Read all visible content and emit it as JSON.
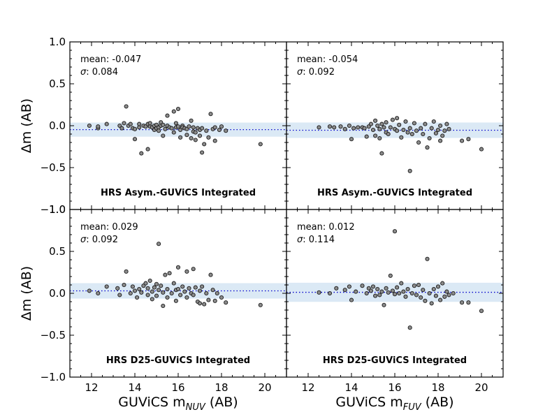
{
  "figure": {
    "ylabel": "Δm (AB)",
    "xlabel_left": {
      "prefix": "GUViCS m",
      "sub": "NUV",
      "suffix": " (AB)"
    },
    "xlabel_right": {
      "prefix": "GUViCS m",
      "sub": "FUV",
      "suffix": " (AB)"
    }
  },
  "colors": {
    "point_fill": "#8c8c8c",
    "point_stroke": "#1a1a1a",
    "band": "#dbe9f5",
    "mean_line": "#0000cc"
  },
  "chart_data": [
    {
      "type": "scatter",
      "panel": "top-left",
      "title": "HRS Asym.-GUViCS Integrated",
      "xlabel": "",
      "ylabel": "Δm (AB)",
      "xlim": [
        11,
        21
      ],
      "ylim": [
        -1.0,
        1.0
      ],
      "xticks": [],
      "yticks": [
        "1.0",
        "0.5",
        "0.0",
        "−0.5",
        "−1.0"
      ],
      "mean_label": "mean: -0.047",
      "mean": -0.047,
      "sigma_label": ": 0.084",
      "sigma": 0.084,
      "points": [
        [
          11.9,
          0.0
        ],
        [
          12.3,
          -0.03
        ],
        [
          12.3,
          -0.01
        ],
        [
          12.7,
          0.02
        ],
        [
          13.3,
          0.0
        ],
        [
          13.4,
          -0.03
        ],
        [
          13.5,
          0.03
        ],
        [
          13.6,
          0.23
        ],
        [
          13.7,
          0.0
        ],
        [
          13.8,
          0.02
        ],
        [
          13.9,
          -0.03
        ],
        [
          14.0,
          -0.04
        ],
        [
          14.0,
          -0.16
        ],
        [
          14.2,
          -0.02
        ],
        [
          14.2,
          0.02
        ],
        [
          14.3,
          -0.33
        ],
        [
          14.4,
          0.0
        ],
        [
          14.5,
          -0.01
        ],
        [
          14.6,
          0.02
        ],
        [
          14.6,
          -0.28
        ],
        [
          14.7,
          -0.01
        ],
        [
          14.7,
          0.03
        ],
        [
          14.8,
          -0.02
        ],
        [
          14.9,
          0.0
        ],
        [
          14.9,
          -0.05
        ],
        [
          15.0,
          0.01
        ],
        [
          15.0,
          -0.03
        ],
        [
          15.1,
          -0.02
        ],
        [
          15.1,
          -0.06
        ],
        [
          15.2,
          0.0
        ],
        [
          15.2,
          0.04
        ],
        [
          15.3,
          -0.12
        ],
        [
          15.3,
          0.01
        ],
        [
          15.4,
          -0.04
        ],
        [
          15.5,
          0.12
        ],
        [
          15.5,
          0.0
        ],
        [
          15.6,
          -0.02
        ],
        [
          15.7,
          -0.03
        ],
        [
          15.8,
          0.17
        ],
        [
          15.8,
          -0.08
        ],
        [
          15.9,
          -0.02
        ],
        [
          15.9,
          0.03
        ],
        [
          16.0,
          -0.01
        ],
        [
          16.0,
          0.2
        ],
        [
          16.1,
          -0.05
        ],
        [
          16.1,
          -0.14
        ],
        [
          16.2,
          0.0
        ],
        [
          16.2,
          -0.02
        ],
        [
          16.3,
          -0.03
        ],
        [
          16.4,
          -0.11
        ],
        [
          16.4,
          -0.04
        ],
        [
          16.5,
          -0.01
        ],
        [
          16.6,
          0.06
        ],
        [
          16.6,
          -0.15
        ],
        [
          16.7,
          -0.07
        ],
        [
          16.7,
          -0.02
        ],
        [
          16.8,
          -0.17
        ],
        [
          16.8,
          -0.08
        ],
        [
          16.9,
          -0.03
        ],
        [
          17.0,
          -0.05
        ],
        [
          17.0,
          -0.12
        ],
        [
          17.1,
          -0.32
        ],
        [
          17.1,
          -0.03
        ],
        [
          17.2,
          -0.22
        ],
        [
          17.3,
          -0.06
        ],
        [
          17.4,
          -0.14
        ],
        [
          17.5,
          0.14
        ],
        [
          17.6,
          -0.04
        ],
        [
          17.7,
          -0.18
        ],
        [
          17.7,
          -0.02
        ],
        [
          17.9,
          -0.05
        ],
        [
          18.0,
          -0.01
        ],
        [
          18.2,
          -0.06
        ],
        [
          19.8,
          -0.22
        ]
      ]
    },
    {
      "type": "scatter",
      "panel": "top-right",
      "title": "HRS Asym.-GUViCS Integrated",
      "xlabel": "",
      "ylabel": "",
      "xlim": [
        11,
        21
      ],
      "ylim": [
        -1.0,
        1.0
      ],
      "xticks": [],
      "yticks": [],
      "mean_label": "mean: -0.054",
      "mean": -0.054,
      "sigma_label": ": 0.092",
      "sigma": 0.092,
      "points": [
        [
          12.5,
          -0.02
        ],
        [
          13.0,
          -0.01
        ],
        [
          13.2,
          -0.02
        ],
        [
          13.5,
          -0.01
        ],
        [
          13.7,
          -0.04
        ],
        [
          13.9,
          0.0
        ],
        [
          14.0,
          -0.16
        ],
        [
          14.1,
          -0.03
        ],
        [
          14.3,
          -0.02
        ],
        [
          14.5,
          -0.02
        ],
        [
          14.6,
          -0.03
        ],
        [
          14.7,
          -0.13
        ],
        [
          14.8,
          -0.01
        ],
        [
          14.9,
          0.02
        ],
        [
          15.0,
          -0.05
        ],
        [
          15.1,
          0.06
        ],
        [
          15.1,
          -0.12
        ],
        [
          15.2,
          0.0
        ],
        [
          15.3,
          -0.15
        ],
        [
          15.3,
          -0.04
        ],
        [
          15.4,
          -0.33
        ],
        [
          15.4,
          0.02
        ],
        [
          15.5,
          -0.02
        ],
        [
          15.6,
          -0.08
        ],
        [
          15.6,
          0.04
        ],
        [
          15.7,
          -0.1
        ],
        [
          15.8,
          -0.02
        ],
        [
          15.9,
          0.07
        ],
        [
          16.0,
          -0.04
        ],
        [
          16.1,
          -0.06
        ],
        [
          16.1,
          0.09
        ],
        [
          16.2,
          0.01
        ],
        [
          16.3,
          -0.14
        ],
        [
          16.4,
          -0.05
        ],
        [
          16.5,
          0.05
        ],
        [
          16.6,
          -0.08
        ],
        [
          16.7,
          -0.54
        ],
        [
          16.7,
          -0.03
        ],
        [
          16.8,
          -0.1
        ],
        [
          16.9,
          0.03
        ],
        [
          17.0,
          -0.06
        ],
        [
          17.1,
          -0.2
        ],
        [
          17.2,
          -0.03
        ],
        [
          17.3,
          -0.1
        ],
        [
          17.4,
          0.02
        ],
        [
          17.5,
          -0.26
        ],
        [
          17.6,
          -0.15
        ],
        [
          17.7,
          -0.03
        ],
        [
          17.8,
          0.05
        ],
        [
          17.9,
          -0.09
        ],
        [
          18.0,
          -0.05
        ],
        [
          18.1,
          -0.18
        ],
        [
          18.1,
          0.0
        ],
        [
          18.2,
          -0.12
        ],
        [
          18.3,
          -0.06
        ],
        [
          18.4,
          0.02
        ],
        [
          18.5,
          -0.04
        ],
        [
          19.1,
          -0.18
        ],
        [
          19.4,
          -0.16
        ],
        [
          20.0,
          -0.28
        ]
      ]
    },
    {
      "type": "scatter",
      "panel": "bottom-left",
      "title": "HRS D25-GUViCS Integrated",
      "xlabel": "GUViCS m_NUV (AB)",
      "ylabel": "Δm (AB)",
      "xlim": [
        11,
        21
      ],
      "ylim": [
        -1.0,
        1.0
      ],
      "xticks": [
        "12",
        "14",
        "16",
        "18",
        "20"
      ],
      "yticks": [
        "1.0",
        "0.5",
        "0.0",
        "−0.5",
        "−1.0"
      ],
      "mean_label": "mean: 0.029",
      "mean": 0.029,
      "sigma_label": ": 0.092",
      "sigma": 0.092,
      "points": [
        [
          11.9,
          0.03
        ],
        [
          12.3,
          0.0
        ],
        [
          12.7,
          0.08
        ],
        [
          13.2,
          0.06
        ],
        [
          13.3,
          -0.02
        ],
        [
          13.5,
          0.1
        ],
        [
          13.6,
          0.26
        ],
        [
          13.8,
          0.0
        ],
        [
          13.9,
          0.08
        ],
        [
          14.0,
          0.03
        ],
        [
          14.1,
          -0.05
        ],
        [
          14.2,
          0.05
        ],
        [
          14.3,
          0.01
        ],
        [
          14.4,
          0.09
        ],
        [
          14.5,
          0.12
        ],
        [
          14.6,
          -0.02
        ],
        [
          14.6,
          0.06
        ],
        [
          14.7,
          0.15
        ],
        [
          14.8,
          0.02
        ],
        [
          14.8,
          -0.07
        ],
        [
          14.9,
          0.07
        ],
        [
          15.0,
          0.11
        ],
        [
          15.0,
          -0.03
        ],
        [
          15.1,
          0.59
        ],
        [
          15.1,
          0.04
        ],
        [
          15.2,
          0.09
        ],
        [
          15.3,
          -0.15
        ],
        [
          15.3,
          0.01
        ],
        [
          15.4,
          0.22
        ],
        [
          15.5,
          0.05
        ],
        [
          15.5,
          -0.05
        ],
        [
          15.6,
          0.24
        ],
        [
          15.7,
          0.0
        ],
        [
          15.8,
          0.12
        ],
        [
          15.9,
          -0.09
        ],
        [
          15.9,
          0.04
        ],
        [
          16.0,
          0.31
        ],
        [
          16.0,
          0.05
        ],
        [
          16.1,
          -0.02
        ],
        [
          16.2,
          0.08
        ],
        [
          16.3,
          0.02
        ],
        [
          16.4,
          0.26
        ],
        [
          16.4,
          -0.05
        ],
        [
          16.5,
          0.06
        ],
        [
          16.6,
          0.0
        ],
        [
          16.7,
          0.29
        ],
        [
          16.7,
          -0.02
        ],
        [
          16.8,
          0.07
        ],
        [
          16.9,
          -0.1
        ],
        [
          17.0,
          0.03
        ],
        [
          17.0,
          -0.12
        ],
        [
          17.1,
          0.08
        ],
        [
          17.2,
          -0.13
        ],
        [
          17.3,
          0.0
        ],
        [
          17.4,
          -0.08
        ],
        [
          17.5,
          0.22
        ],
        [
          17.6,
          0.04
        ],
        [
          17.7,
          -0.09
        ],
        [
          17.8,
          0.0
        ],
        [
          18.0,
          -0.05
        ],
        [
          18.2,
          -0.11
        ],
        [
          19.8,
          -0.14
        ]
      ]
    },
    {
      "type": "scatter",
      "panel": "bottom-right",
      "title": "HRS D25-GUViCS Integrated",
      "xlabel": "GUViCS m_FUV (AB)",
      "ylabel": "",
      "xlim": [
        11,
        21
      ],
      "ylim": [
        -1.0,
        1.0
      ],
      "xticks": [
        "12",
        "14",
        "16",
        "18",
        "20"
      ],
      "yticks": [],
      "mean_label": "mean: 0.012",
      "mean": 0.012,
      "sigma_label": ": 0.114",
      "sigma": 0.114,
      "points": [
        [
          12.5,
          0.01
        ],
        [
          13.0,
          0.0
        ],
        [
          13.3,
          0.06
        ],
        [
          13.7,
          0.04
        ],
        [
          13.9,
          0.08
        ],
        [
          14.0,
          -0.08
        ],
        [
          14.2,
          0.02
        ],
        [
          14.5,
          0.09
        ],
        [
          14.7,
          0.0
        ],
        [
          14.8,
          0.06
        ],
        [
          14.9,
          0.03
        ],
        [
          15.0,
          0.08
        ],
        [
          15.1,
          -0.03
        ],
        [
          15.2,
          0.05
        ],
        [
          15.3,
          -0.02
        ],
        [
          15.4,
          0.02
        ],
        [
          15.5,
          -0.14
        ],
        [
          15.6,
          0.06
        ],
        [
          15.7,
          0.01
        ],
        [
          15.8,
          0.21
        ],
        [
          15.9,
          0.03
        ],
        [
          16.0,
          0.74
        ],
        [
          16.0,
          -0.01
        ],
        [
          16.1,
          0.07
        ],
        [
          16.2,
          0.0
        ],
        [
          16.3,
          0.12
        ],
        [
          16.4,
          0.02
        ],
        [
          16.5,
          -0.04
        ],
        [
          16.6,
          0.05
        ],
        [
          16.7,
          -0.41
        ],
        [
          16.8,
          0.0
        ],
        [
          16.9,
          0.09
        ],
        [
          17.0,
          -0.02
        ],
        [
          17.1,
          0.1
        ],
        [
          17.2,
          -0.05
        ],
        [
          17.3,
          0.04
        ],
        [
          17.4,
          -0.09
        ],
        [
          17.5,
          0.41
        ],
        [
          17.6,
          0.0
        ],
        [
          17.7,
          -0.12
        ],
        [
          17.8,
          0.05
        ],
        [
          17.9,
          -0.03
        ],
        [
          18.0,
          0.08
        ],
        [
          18.1,
          -0.08
        ],
        [
          18.2,
          0.12
        ],
        [
          18.3,
          -0.04
        ],
        [
          18.4,
          0.02
        ],
        [
          18.5,
          -0.02
        ],
        [
          18.7,
          0.0
        ],
        [
          19.1,
          -0.11
        ],
        [
          19.4,
          -0.11
        ],
        [
          20.0,
          -0.21
        ]
      ]
    }
  ]
}
